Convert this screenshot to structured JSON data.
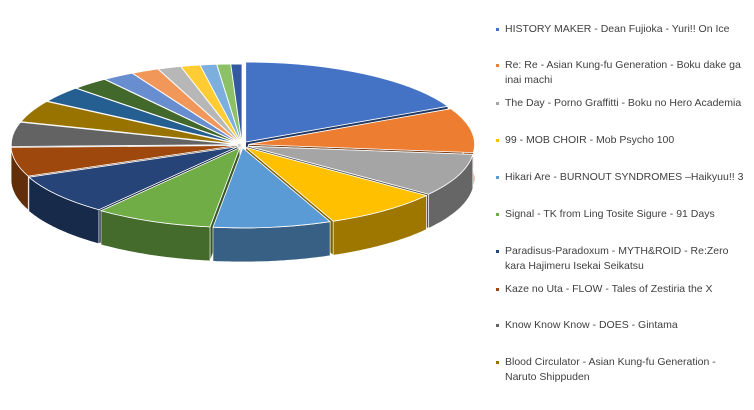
{
  "chart_data": {
    "type": "pie",
    "style": "3d-exploded",
    "title": "",
    "legend_position": "right",
    "slices": [
      {
        "label": "HISTORY MAKER - Dean Fujioka - Yuri!! On Ice",
        "value": 18.0,
        "color": "#4472C4",
        "in_legend": true
      },
      {
        "label": "Re: Re - Asian Kung-fu Generation - Boku dake ga inai machi",
        "value": 9.2,
        "color": "#ED7D31",
        "in_legend": true
      },
      {
        "label": "The Day - Porno Graffitti - Boku no Hero Academia",
        "value": 8.8,
        "color": "#A5A5A5",
        "in_legend": true
      },
      {
        "label": "99 - MOB CHOIR - Mob Psycho 100",
        "value": 8.6,
        "color": "#FFC000",
        "in_legend": true
      },
      {
        "label": "Hikari Are - BURNOUT SYNDROMES –Haikyuu!! 3",
        "value": 8.6,
        "color": "#5B9BD5",
        "in_legend": true
      },
      {
        "label": "Signal - TK from Ling Tosite Sigure - 91 Days",
        "value": 8.6,
        "color": "#70AD47",
        "in_legend": true
      },
      {
        "label": "Paradisus-Paradoxum - MYTH&ROID - Re:Zero kara Hajimeru Isekai Seikatsu",
        "value": 8.4,
        "color": "#264478",
        "in_legend": true
      },
      {
        "label": "Kaze no Uta - FLOW - Tales of Zestiria the X",
        "value": 6.0,
        "color": "#9E480E",
        "in_legend": true
      },
      {
        "label": "Know Know Know - DOES - Gintama",
        "value": 5.0,
        "color": "#636363",
        "in_legend": true
      },
      {
        "label": "Blood Circulator - Asian Kung-fu Generation - Naruto Shippuden",
        "value": 4.5,
        "color": "#997300",
        "in_legend": true
      },
      {
        "label": "",
        "value": 3.3,
        "color": "#255E91",
        "in_legend": false
      },
      {
        "label": "",
        "value": 2.7,
        "color": "#43682B",
        "in_legend": false
      },
      {
        "label": "",
        "value": 2.3,
        "color": "#698ED0",
        "in_legend": false
      },
      {
        "label": "",
        "value": 2.0,
        "color": "#F1975A",
        "in_legend": false
      },
      {
        "label": "",
        "value": 1.7,
        "color": "#B7B7B7",
        "in_legend": false
      },
      {
        "label": "",
        "value": 1.4,
        "color": "#FFCD33",
        "in_legend": false
      },
      {
        "label": "",
        "value": 1.2,
        "color": "#7CAFDD",
        "in_legend": false
      },
      {
        "label": "",
        "value": 1.0,
        "color": "#8CC168",
        "in_legend": false
      },
      {
        "label": "",
        "value": 0.8,
        "color": "#335AA1",
        "in_legend": false
      }
    ]
  }
}
